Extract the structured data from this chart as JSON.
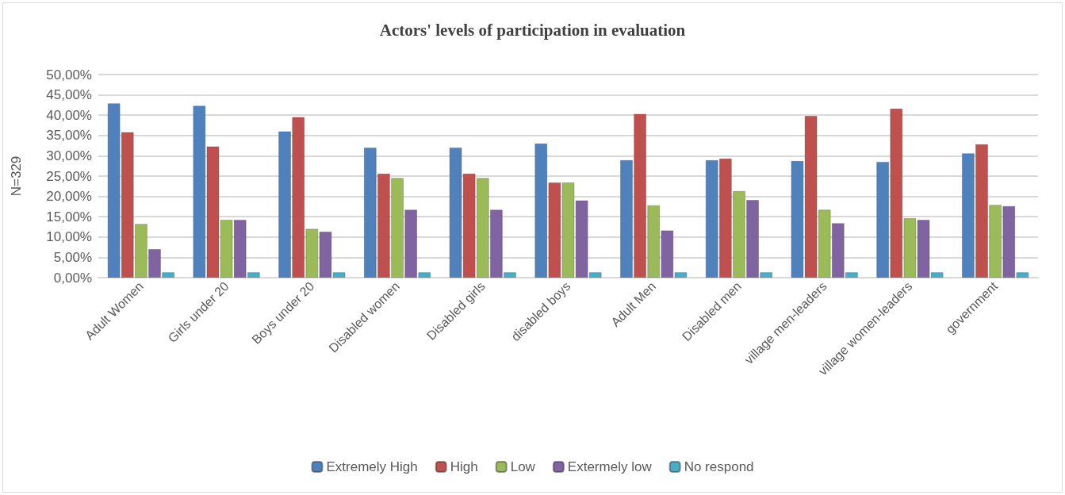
{
  "chart_data": {
    "type": "bar",
    "title": "Actors' levels of participation in evaluation",
    "ylabel": "N=329",
    "categories": [
      "Adult Women",
      "Girls under 20",
      "Boys under 20",
      "Disabled women",
      "Disabled girls",
      "disabled boys",
      "Adult Men",
      "Disabled men",
      "village men-leaders",
      "village women-leaders",
      "government"
    ],
    "series": [
      {
        "name": "Extremely High",
        "color": "#4f81bd",
        "values": [
          42.9,
          42.3,
          36.0,
          32.0,
          32.0,
          33.0,
          28.9,
          28.9,
          28.7,
          28.5,
          30.6
        ]
      },
      {
        "name": "High",
        "color": "#c0504d",
        "values": [
          35.8,
          32.3,
          39.5,
          25.6,
          25.6,
          23.4,
          40.3,
          29.3,
          39.8,
          41.6,
          32.8
        ]
      },
      {
        "name": "Low",
        "color": "#9bbb59",
        "values": [
          13.2,
          14.2,
          12.0,
          24.5,
          24.5,
          23.4,
          17.8,
          21.3,
          16.7,
          14.6,
          17.9
        ]
      },
      {
        "name": "Extermely low",
        "color": "#8064a2",
        "values": [
          7.0,
          14.2,
          11.3,
          16.7,
          16.7,
          19.0,
          11.6,
          19.1,
          13.4,
          14.2,
          17.6
        ]
      },
      {
        "name": "No respond",
        "color": "#4bacc6",
        "values": [
          1.3,
          1.3,
          1.3,
          1.3,
          1.3,
          1.3,
          1.3,
          1.3,
          1.3,
          1.3,
          1.3
        ]
      }
    ],
    "ylim": [
      0,
      50
    ],
    "yticks": [
      {
        "value": 0,
        "label": "0,00%"
      },
      {
        "value": 5,
        "label": "5,00%"
      },
      {
        "value": 10,
        "label": "10,00%"
      },
      {
        "value": 15,
        "label": "15,00%"
      },
      {
        "value": 20,
        "label": "20,00%"
      },
      {
        "value": 25,
        "label": "25,00%"
      },
      {
        "value": 30,
        "label": "30,00%"
      },
      {
        "value": 35,
        "label": "35,00%"
      },
      {
        "value": 40,
        "label": "40,00%"
      },
      {
        "value": 45,
        "label": "45,00%"
      },
      {
        "value": 50,
        "label": "50,00%"
      }
    ],
    "grid": "y",
    "legend": "bottom"
  }
}
